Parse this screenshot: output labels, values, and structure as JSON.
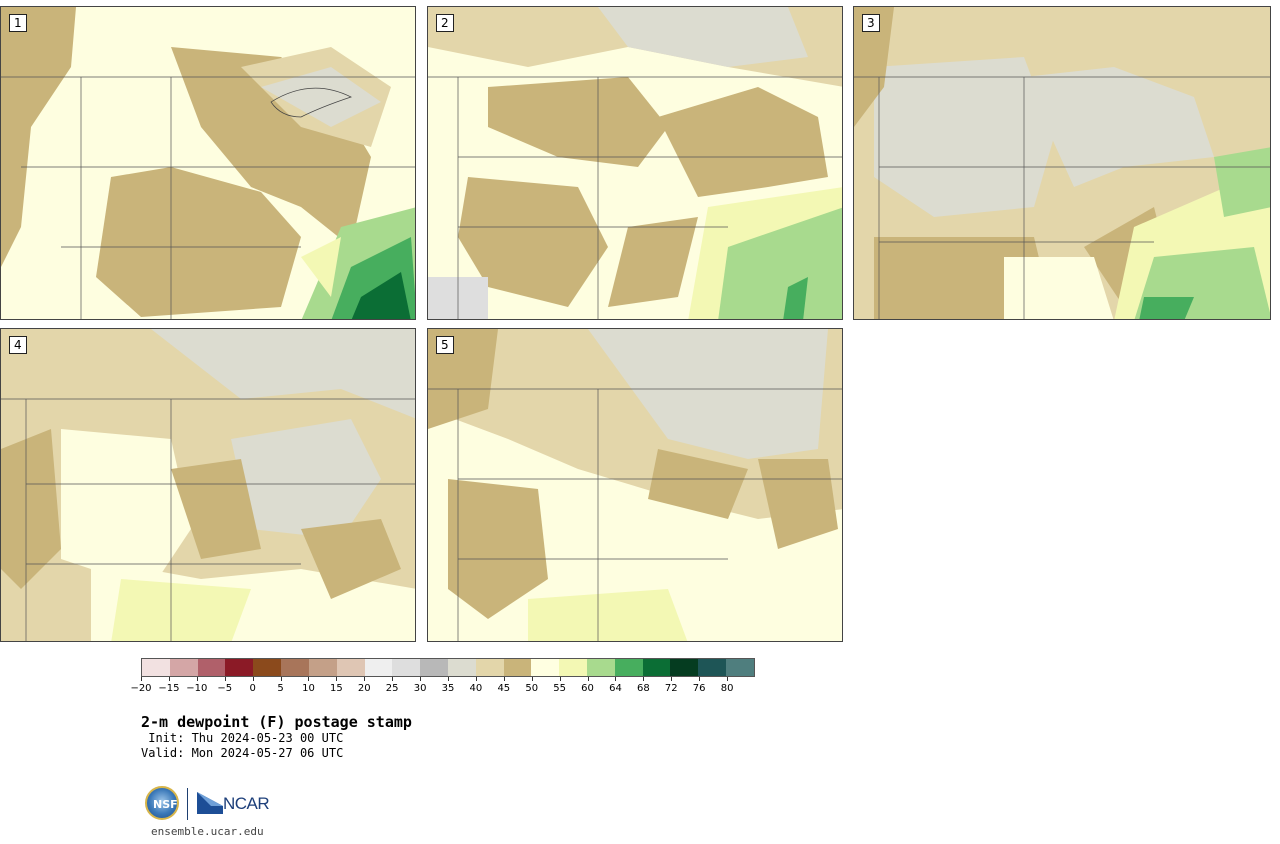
{
  "panels": [
    {
      "label": "1"
    },
    {
      "label": "2"
    },
    {
      "label": "3"
    },
    {
      "label": "4"
    },
    {
      "label": "5"
    }
  ],
  "colorbar": {
    "colors": [
      "#f2e1e1",
      "#d4a6a6",
      "#b0606a",
      "#8b1a26",
      "#8b4a1c",
      "#a8755a",
      "#c4a088",
      "#dfc6b4",
      "#efefef",
      "#dedede",
      "#b8b8b8",
      "#dcdcd0",
      "#e3d6aa",
      "#c9b47a",
      "#ffffe1",
      "#f3f8b4",
      "#a8da8e",
      "#47ae5e",
      "#0b6e35",
      "#053c20",
      "#1e5556",
      "#4f7e7e"
    ],
    "ticks": [
      "-20",
      "-15",
      "-10",
      "-5",
      "0",
      "5",
      "10",
      "15",
      "20",
      "25",
      "30",
      "35",
      "40",
      "45",
      "50",
      "55",
      "60",
      "64",
      "68",
      "72",
      "76",
      "80"
    ]
  },
  "title": "2-m dewpoint (F) postage stamp",
  "init": " Init: Thu 2024-05-23 00 UTC",
  "valid": "Valid: Mon 2024-05-27 06 UTC",
  "logos": {
    "nsf": "NSF",
    "ncar": "NCAR"
  },
  "url": "ensemble.ucar.edu"
}
